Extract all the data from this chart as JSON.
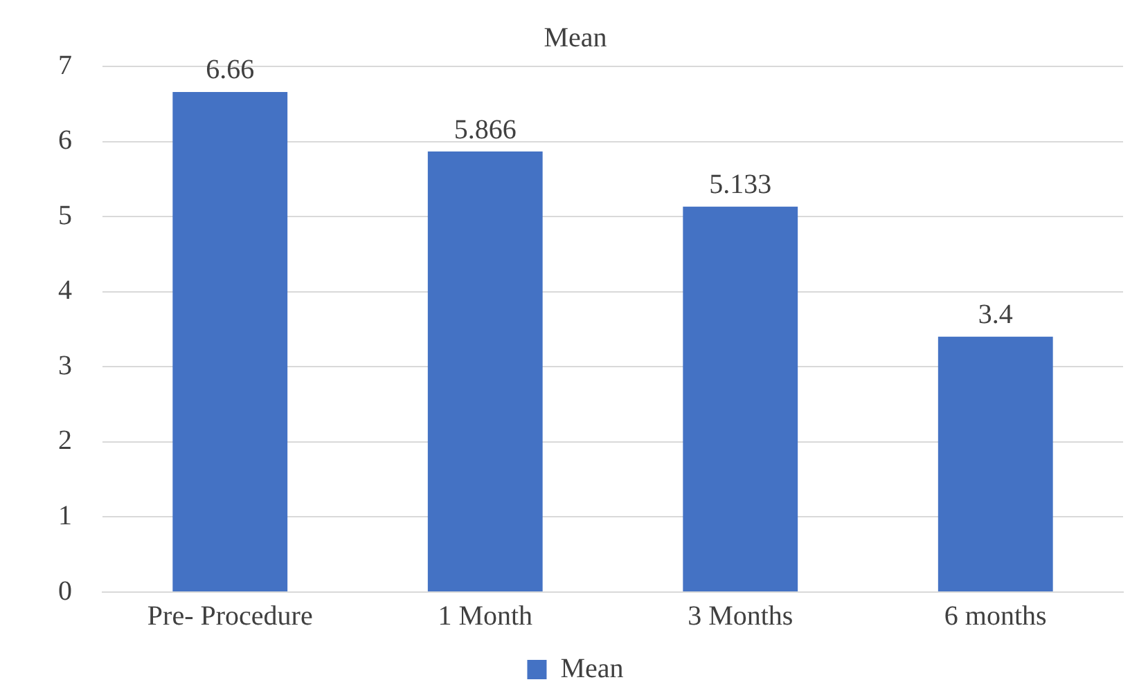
{
  "chart_data": {
    "type": "bar",
    "title": "Mean",
    "categories": [
      "Pre- Procedure",
      "1 Month",
      "3 Months",
      "6 months"
    ],
    "series": [
      {
        "name": "Mean",
        "color": "#4472c4",
        "values": [
          6.66,
          5.866,
          5.133,
          3.4
        ]
      }
    ],
    "ylim": [
      0,
      7
    ],
    "yticks": [
      0,
      1,
      2,
      3,
      4,
      5,
      6,
      7
    ],
    "grid": "y",
    "legend": "bottom",
    "data_labels": true
  }
}
